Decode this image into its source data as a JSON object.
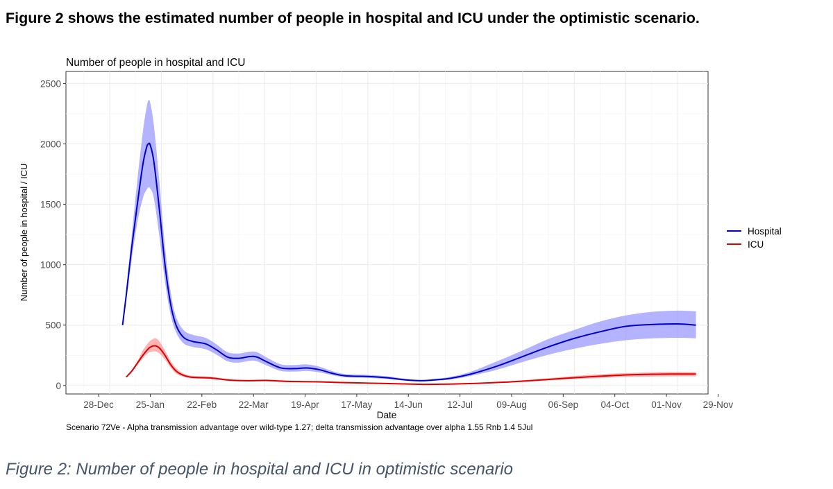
{
  "heading": "Figure 2 shows the estimated number of people in hospital and ICU under the optimistic scenario.",
  "caption": "Figure 2: Number of people in hospital and ICU in optimistic scenario",
  "chart_data": {
    "type": "line",
    "title": "Number of people in hospital and ICU",
    "xlabel": "Date",
    "ylabel": "Number of people in hospital / ICU",
    "footnote": "Scenario  72Ve  -  Alpha transmission advantage over wild-type 1.27; delta transmission advantage over alpha 1.55 Rnb 1.4 5Jul",
    "x_tick_labels": [
      "28-Dec",
      "25-Jan",
      "22-Feb",
      "22-Mar",
      "19-Apr",
      "17-May",
      "14-Jun",
      "12-Jul",
      "09-Aug",
      "06-Sep",
      "04-Oct",
      "01-Nov",
      "29-Nov"
    ],
    "y_ticks": [
      0,
      500,
      1000,
      1500,
      2000,
      2500
    ],
    "ylim": [
      -70,
      2600
    ],
    "grid": true,
    "legend_position": "right",
    "series": [
      {
        "name": "Hospital",
        "color": "#0000cc",
        "band_color": "#9999ff",
        "points": [
          {
            "day": 7,
            "y": 500,
            "lo": 500,
            "hi": 500
          },
          {
            "day": 9,
            "y": 750,
            "lo": 700,
            "hi": 800
          },
          {
            "day": 12,
            "y": 1150,
            "lo": 1050,
            "hi": 1250
          },
          {
            "day": 15,
            "y": 1500,
            "lo": 1350,
            "hi": 1700
          },
          {
            "day": 18,
            "y": 1830,
            "lo": 1550,
            "hi": 2100
          },
          {
            "day": 20,
            "y": 1970,
            "lo": 1620,
            "hi": 2300
          },
          {
            "day": 21,
            "y": 2000,
            "lo": 1640,
            "hi": 2360
          },
          {
            "day": 22,
            "y": 1990,
            "lo": 1630,
            "hi": 2340
          },
          {
            "day": 24,
            "y": 1850,
            "lo": 1550,
            "hi": 2150
          },
          {
            "day": 27,
            "y": 1450,
            "lo": 1230,
            "hi": 1680
          },
          {
            "day": 30,
            "y": 1000,
            "lo": 860,
            "hi": 1150
          },
          {
            "day": 33,
            "y": 680,
            "lo": 590,
            "hi": 780
          },
          {
            "day": 36,
            "y": 500,
            "lo": 440,
            "hi": 570
          },
          {
            "day": 40,
            "y": 400,
            "lo": 350,
            "hi": 460
          },
          {
            "day": 45,
            "y": 365,
            "lo": 320,
            "hi": 420
          },
          {
            "day": 52,
            "y": 345,
            "lo": 300,
            "hi": 395
          },
          {
            "day": 58,
            "y": 295,
            "lo": 255,
            "hi": 340
          },
          {
            "day": 64,
            "y": 235,
            "lo": 200,
            "hi": 275
          },
          {
            "day": 70,
            "y": 225,
            "lo": 190,
            "hi": 265
          },
          {
            "day": 76,
            "y": 240,
            "lo": 205,
            "hi": 280
          },
          {
            "day": 80,
            "y": 235,
            "lo": 200,
            "hi": 275
          },
          {
            "day": 86,
            "y": 190,
            "lo": 160,
            "hi": 225
          },
          {
            "day": 93,
            "y": 145,
            "lo": 120,
            "hi": 175
          },
          {
            "day": 100,
            "y": 140,
            "lo": 115,
            "hi": 170
          },
          {
            "day": 107,
            "y": 145,
            "lo": 120,
            "hi": 175
          },
          {
            "day": 114,
            "y": 130,
            "lo": 108,
            "hi": 155
          },
          {
            "day": 121,
            "y": 100,
            "lo": 85,
            "hi": 118
          },
          {
            "day": 128,
            "y": 80,
            "lo": 68,
            "hi": 95
          },
          {
            "day": 140,
            "y": 75,
            "lo": 63,
            "hi": 88
          },
          {
            "day": 150,
            "y": 65,
            "lo": 55,
            "hi": 77
          },
          {
            "day": 160,
            "y": 48,
            "lo": 40,
            "hi": 57
          },
          {
            "day": 168,
            "y": 40,
            "lo": 34,
            "hi": 47
          },
          {
            "day": 175,
            "y": 45,
            "lo": 38,
            "hi": 53
          },
          {
            "day": 185,
            "y": 60,
            "lo": 50,
            "hi": 72
          },
          {
            "day": 196,
            "y": 95,
            "lo": 80,
            "hi": 115
          },
          {
            "day": 210,
            "y": 160,
            "lo": 130,
            "hi": 200
          },
          {
            "day": 224,
            "y": 240,
            "lo": 195,
            "hi": 290
          },
          {
            "day": 238,
            "y": 320,
            "lo": 255,
            "hi": 385
          },
          {
            "day": 252,
            "y": 390,
            "lo": 305,
            "hi": 460
          },
          {
            "day": 266,
            "y": 445,
            "lo": 345,
            "hi": 530
          },
          {
            "day": 280,
            "y": 490,
            "lo": 375,
            "hi": 580
          },
          {
            "day": 294,
            "y": 505,
            "lo": 390,
            "hi": 610
          },
          {
            "day": 308,
            "y": 510,
            "lo": 395,
            "hi": 620
          },
          {
            "day": 318,
            "y": 500,
            "lo": 390,
            "hi": 615
          }
        ]
      },
      {
        "name": "ICU",
        "color": "#dd0000",
        "band_color": "#ff9999",
        "points": [
          {
            "day": 9,
            "y": 70,
            "lo": 70,
            "hi": 70
          },
          {
            "day": 12,
            "y": 120,
            "lo": 110,
            "hi": 130
          },
          {
            "day": 15,
            "y": 185,
            "lo": 170,
            "hi": 200
          },
          {
            "day": 18,
            "y": 250,
            "lo": 225,
            "hi": 290
          },
          {
            "day": 21,
            "y": 305,
            "lo": 270,
            "hi": 355
          },
          {
            "day": 23,
            "y": 325,
            "lo": 280,
            "hi": 380
          },
          {
            "day": 25,
            "y": 328,
            "lo": 282,
            "hi": 390
          },
          {
            "day": 27,
            "y": 310,
            "lo": 265,
            "hi": 365
          },
          {
            "day": 30,
            "y": 250,
            "lo": 215,
            "hi": 290
          },
          {
            "day": 33,
            "y": 175,
            "lo": 150,
            "hi": 205
          },
          {
            "day": 36,
            "y": 120,
            "lo": 100,
            "hi": 145
          },
          {
            "day": 40,
            "y": 85,
            "lo": 72,
            "hi": 100
          },
          {
            "day": 45,
            "y": 68,
            "lo": 58,
            "hi": 80
          },
          {
            "day": 55,
            "y": 62,
            "lo": 53,
            "hi": 73
          },
          {
            "day": 65,
            "y": 45,
            "lo": 38,
            "hi": 53
          },
          {
            "day": 75,
            "y": 40,
            "lo": 34,
            "hi": 47
          },
          {
            "day": 85,
            "y": 42,
            "lo": 36,
            "hi": 50
          },
          {
            "day": 95,
            "y": 35,
            "lo": 29,
            "hi": 42
          },
          {
            "day": 105,
            "y": 32,
            "lo": 27,
            "hi": 38
          },
          {
            "day": 115,
            "y": 30,
            "lo": 25,
            "hi": 36
          },
          {
            "day": 125,
            "y": 25,
            "lo": 21,
            "hi": 30
          },
          {
            "day": 140,
            "y": 20,
            "lo": 17,
            "hi": 24
          },
          {
            "day": 155,
            "y": 15,
            "lo": 12,
            "hi": 18
          },
          {
            "day": 170,
            "y": 10,
            "lo": 8,
            "hi": 12
          },
          {
            "day": 185,
            "y": 12,
            "lo": 10,
            "hi": 15
          },
          {
            "day": 200,
            "y": 18,
            "lo": 15,
            "hi": 22
          },
          {
            "day": 215,
            "y": 28,
            "lo": 23,
            "hi": 34
          },
          {
            "day": 230,
            "y": 42,
            "lo": 35,
            "hi": 50
          },
          {
            "day": 245,
            "y": 58,
            "lo": 48,
            "hi": 70
          },
          {
            "day": 260,
            "y": 72,
            "lo": 59,
            "hi": 87
          },
          {
            "day": 275,
            "y": 84,
            "lo": 68,
            "hi": 100
          },
          {
            "day": 290,
            "y": 92,
            "lo": 74,
            "hi": 108
          },
          {
            "day": 305,
            "y": 95,
            "lo": 76,
            "hi": 112
          },
          {
            "day": 318,
            "y": 95,
            "lo": 76,
            "hi": 112
          }
        ]
      }
    ]
  }
}
